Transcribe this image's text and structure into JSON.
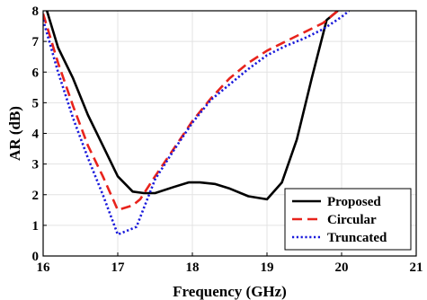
{
  "chart_data": {
    "type": "line",
    "title": "",
    "xlabel": "Frequency (GHz)",
    "ylabel": "AR (dB)",
    "xlim": [
      16,
      21
    ],
    "ylim": [
      0,
      8
    ],
    "xticks": [
      16,
      17,
      18,
      19,
      20,
      21
    ],
    "yticks": [
      0,
      1,
      2,
      3,
      4,
      5,
      6,
      7,
      8
    ],
    "grid": true,
    "legend_position": "bottom-right",
    "series": [
      {
        "name": "Proposed",
        "color": "#000000",
        "dash": "solid",
        "x": [
          16.05,
          16.2,
          16.4,
          16.6,
          16.8,
          17.0,
          17.2,
          17.35,
          17.5,
          17.75,
          17.95,
          18.1,
          18.3,
          18.5,
          18.75,
          19.0,
          19.2,
          19.4,
          19.6,
          19.8,
          19.95
        ],
        "y": [
          8.0,
          6.8,
          5.8,
          4.6,
          3.6,
          2.6,
          2.1,
          2.05,
          2.05,
          2.25,
          2.4,
          2.4,
          2.35,
          2.2,
          1.95,
          1.85,
          2.4,
          3.8,
          5.8,
          7.7,
          8.0
        ]
      },
      {
        "name": "Circular",
        "color": "#e8231c",
        "dash": "dashed",
        "x": [
          16.0,
          16.2,
          16.4,
          16.6,
          16.8,
          17.0,
          17.2,
          17.3,
          17.5,
          17.75,
          18.0,
          18.25,
          18.5,
          18.75,
          19.0,
          19.25,
          19.5,
          19.75,
          19.95
        ],
        "y": [
          7.9,
          6.3,
          4.9,
          3.6,
          2.6,
          1.5,
          1.65,
          1.85,
          2.6,
          3.5,
          4.4,
          5.15,
          5.8,
          6.3,
          6.7,
          7.0,
          7.3,
          7.6,
          8.0
        ]
      },
      {
        "name": "Truncated",
        "color": "#1a1adb",
        "dash": "dotted",
        "x": [
          16.0,
          16.2,
          16.4,
          16.6,
          16.8,
          17.0,
          17.25,
          17.5,
          17.75,
          18.0,
          18.25,
          18.5,
          18.75,
          19.0,
          19.25,
          19.5,
          19.75,
          20.0,
          20.1
        ],
        "y": [
          7.7,
          6.0,
          4.5,
          3.2,
          2.0,
          0.7,
          0.95,
          2.5,
          3.45,
          4.35,
          5.1,
          5.6,
          6.1,
          6.55,
          6.85,
          7.1,
          7.4,
          7.8,
          8.0
        ]
      }
    ]
  }
}
